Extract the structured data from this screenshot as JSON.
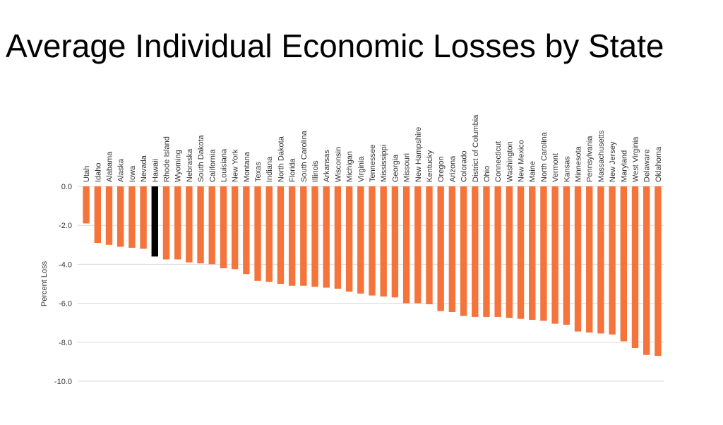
{
  "title": "Average Individual Economic Losses by State",
  "colors": {
    "bar": "#F4743B",
    "highlight": "#000000",
    "grid": "#D9D9D9"
  },
  "chart_data": {
    "type": "bar",
    "title": "Average Individual Economic Losses by State",
    "xlabel": "",
    "ylabel": "Percent Loss",
    "ylim": [
      -10,
      0
    ],
    "yticks": [
      0,
      -2,
      -4,
      -6,
      -8,
      -10
    ],
    "ytick_labels": [
      "0.0",
      "-2.0",
      "-4.0",
      "-6.0",
      "-8.0",
      "-10.0"
    ],
    "grid": true,
    "highlight_category": "Hawaii",
    "categories": [
      "Utah",
      "Idaho",
      "Alabama",
      "Alaska",
      "Iowa",
      "Nevada",
      "Hawaii",
      "Rhode Island",
      "Wyoming",
      "Nebraska",
      "South Dakota",
      "California",
      "Louisiana",
      "New York",
      "Montana",
      "Texas",
      "Indiana",
      "North Dakota",
      "Florida",
      "South Carolina",
      "Illinois",
      "Arkansas",
      "Wisconsin",
      "Michigan",
      "Virginia",
      "Tennessee",
      "Mississippi",
      "Georgia",
      "Missouri",
      "New Hampshire",
      "Kentucky",
      "Oregon",
      "Arizona",
      "Colorado",
      "District of Columbia",
      "Ohio",
      "Connecticut",
      "Washington",
      "New Mexico",
      "Maine",
      "North Carolina",
      "Vermont",
      "Kansas",
      "Minnesota",
      "Pennsylvania",
      "Massachusetts",
      "New Jersey",
      "Maryland",
      "West Virginia",
      "Delaware",
      "Oklahoma"
    ],
    "values": [
      -1.9,
      -2.9,
      -3.0,
      -3.1,
      -3.15,
      -3.2,
      -3.6,
      -3.75,
      -3.75,
      -3.9,
      -3.95,
      -4.0,
      -4.2,
      -4.25,
      -4.5,
      -4.85,
      -4.9,
      -5.0,
      -5.1,
      -5.1,
      -5.15,
      -5.2,
      -5.25,
      -5.4,
      -5.5,
      -5.6,
      -5.65,
      -5.7,
      -6.0,
      -6.0,
      -6.05,
      -6.4,
      -6.45,
      -6.65,
      -6.7,
      -6.7,
      -6.7,
      -6.75,
      -6.8,
      -6.85,
      -6.9,
      -7.05,
      -7.1,
      -7.45,
      -7.5,
      -7.55,
      -7.6,
      -7.95,
      -8.3,
      -8.65,
      -8.7
    ]
  }
}
